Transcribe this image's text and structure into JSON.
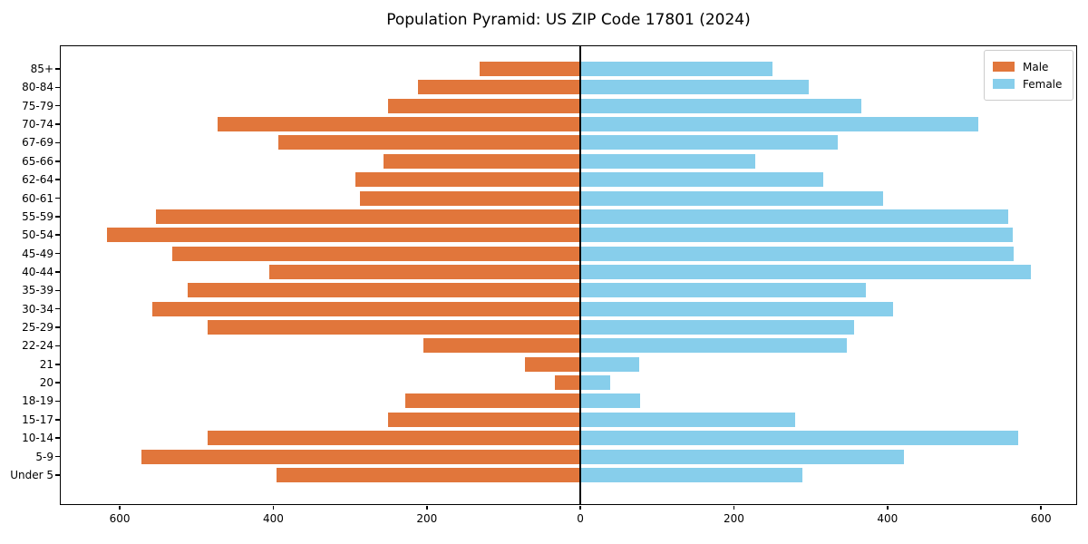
{
  "chart_data": {
    "type": "bar",
    "variant": "population-pyramid-horizontal",
    "title": "Population Pyramid: US ZIP Code 17801 (2024)",
    "categories": [
      "85+",
      "80-84",
      "75-79",
      "70-74",
      "67-69",
      "65-66",
      "62-64",
      "60-61",
      "55-59",
      "50-54",
      "45-49",
      "40-44",
      "35-39",
      "30-34",
      "25-29",
      "22-24",
      "21",
      "20",
      "18-19",
      "15-17",
      "10-14",
      "5-9",
      "Under 5"
    ],
    "series": [
      {
        "name": "Male",
        "side": "left",
        "color": "#e1763b",
        "values": [
          131,
          212,
          250,
          473,
          393,
          256,
          293,
          287,
          553,
          617,
          531,
          405,
          511,
          557,
          485,
          205,
          72,
          33,
          228,
          250,
          485,
          572,
          396
        ]
      },
      {
        "name": "Female",
        "side": "right",
        "color": "#87ceeb",
        "values": [
          250,
          297,
          366,
          518,
          335,
          228,
          316,
          394,
          557,
          563,
          564,
          587,
          372,
          407,
          356,
          347,
          77,
          39,
          78,
          280,
          570,
          422,
          289
        ]
      }
    ],
    "x_tick_values": [
      -600,
      -400,
      -200,
      0,
      200,
      400,
      600
    ],
    "x_tick_labels": [
      "600",
      "400",
      "200",
      "0",
      "200",
      "400",
      "600"
    ],
    "xlim": [
      -678,
      647
    ],
    "ylabel": "",
    "xlabel": "",
    "grid": false,
    "zero_line": true,
    "legend": {
      "position": "upper-right",
      "entries": [
        "Male",
        "Female"
      ]
    }
  },
  "colors": {
    "male": "#e1763b",
    "female": "#87ceeb",
    "axis": "#000000",
    "background": "#ffffff",
    "legend_border": "#cccccc"
  }
}
